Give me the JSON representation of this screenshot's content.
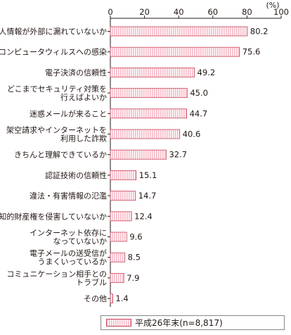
{
  "chart_data": {
    "type": "bar",
    "orientation": "horizontal",
    "unit_label": "(%)",
    "xlim": [
      0,
      100
    ],
    "ticks": [
      0,
      20,
      40,
      60,
      80,
      100
    ],
    "categories": [
      "個人情報が外部に漏れていないか",
      "コンピュータウィルスへの感染",
      "電子決済の信頼性",
      "どこまでセキュリティ対策を\n行えばよいか",
      "迷惑メールが来ること",
      "架空請求やインターネットを\n利用した詐欺",
      "きちんと理解できているか",
      "認証技術の信頼性",
      "違法・有害情報の氾濫",
      "知的財産権を侵害していないか",
      "インターネット依存に\nなっていないか",
      "電子メールの送受信が\nうまくいっているか",
      "コミュニケーション相手との\nトラブル",
      "その他"
    ],
    "series": [
      {
        "name": "平成26年末(n=8,817)",
        "values": [
          80.2,
          75.6,
          49.2,
          45.0,
          44.7,
          40.6,
          32.7,
          15.1,
          14.7,
          12.4,
          9.6,
          8.5,
          7.9,
          1.4
        ]
      }
    ],
    "value_labels": [
      "80.2",
      "75.6",
      "49.2",
      "45.0",
      "44.7",
      "40.6",
      "32.7",
      "15.1",
      "14.7",
      "12.4",
      "9.6",
      "8.5",
      "7.9",
      "1.4"
    ],
    "legend_position": "bottom",
    "grid": false,
    "colors": {
      "bar_fill": "#f6b9c6",
      "bar_stroke": "#c8465a",
      "axis": "#231815",
      "bar_stripe": "#ffffff"
    }
  }
}
